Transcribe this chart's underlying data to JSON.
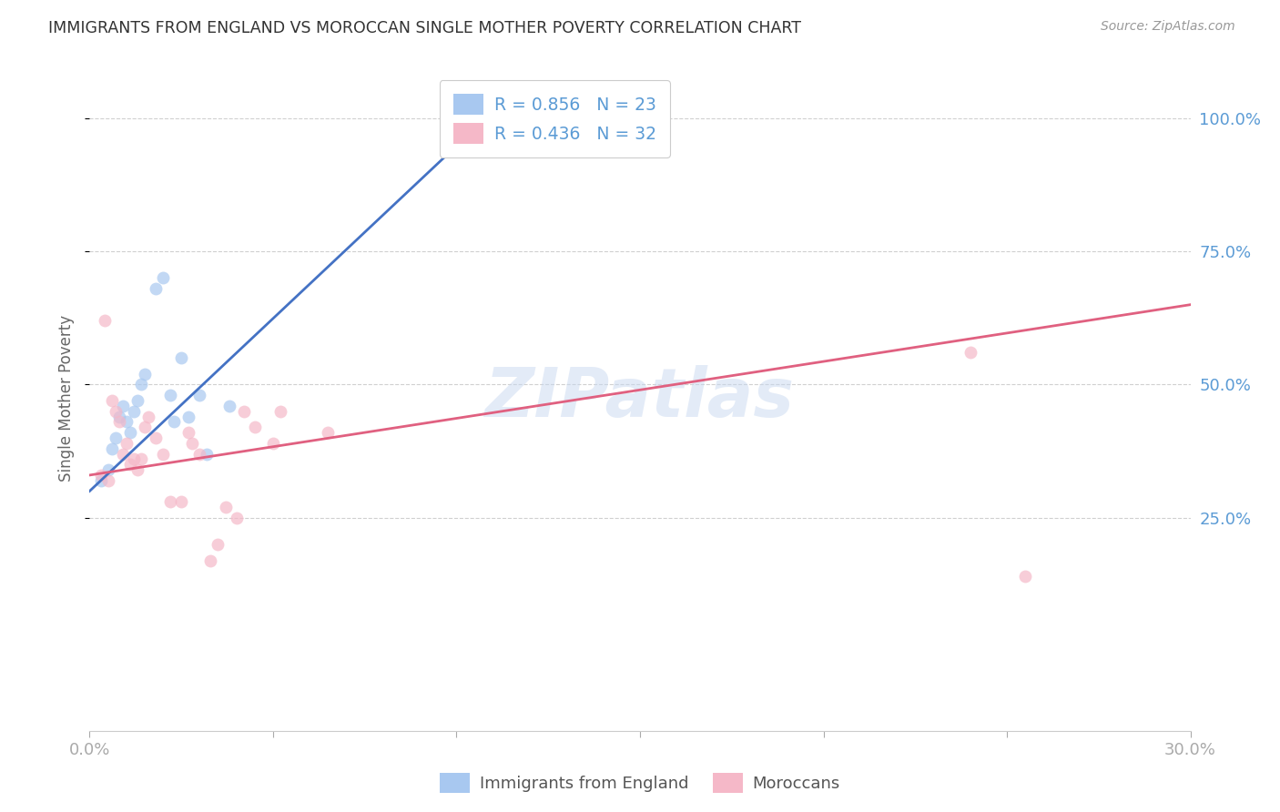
{
  "title": "IMMIGRANTS FROM ENGLAND VS MOROCCAN SINGLE MOTHER POVERTY CORRELATION CHART",
  "source": "Source: ZipAtlas.com",
  "ylabel": "Single Mother Poverty",
  "ylabel_right_labels": [
    "100.0%",
    "75.0%",
    "50.0%",
    "25.0%"
  ],
  "ylabel_right_positions": [
    100.0,
    75.0,
    50.0,
    25.0
  ],
  "legend_entries": [
    {
      "label": "R = 0.856   N = 23",
      "color": "#a8c8f0"
    },
    {
      "label": "R = 0.436   N = 32",
      "color": "#f5b8c8"
    }
  ],
  "legend_label_blue": "Immigrants from England",
  "legend_label_pink": "Moroccans",
  "watermark": "ZIPatlas",
  "xlim": [
    0.0,
    0.3
  ],
  "ylim": [
    -15.0,
    110.0
  ],
  "blue_points_x": [
    0.003,
    0.005,
    0.006,
    0.007,
    0.008,
    0.009,
    0.01,
    0.011,
    0.012,
    0.013,
    0.014,
    0.015,
    0.018,
    0.02,
    0.022,
    0.023,
    0.025,
    0.027,
    0.03,
    0.032,
    0.038,
    0.105,
    0.108
  ],
  "blue_points_y": [
    32.0,
    34.0,
    38.0,
    40.0,
    44.0,
    46.0,
    43.0,
    41.0,
    45.0,
    47.0,
    50.0,
    52.0,
    68.0,
    70.0,
    48.0,
    43.0,
    55.0,
    44.0,
    48.0,
    37.0,
    46.0,
    96.0,
    97.0
  ],
  "pink_points_x": [
    0.003,
    0.004,
    0.005,
    0.006,
    0.007,
    0.008,
    0.009,
    0.01,
    0.011,
    0.012,
    0.013,
    0.014,
    0.015,
    0.016,
    0.018,
    0.02,
    0.022,
    0.025,
    0.027,
    0.028,
    0.03,
    0.033,
    0.035,
    0.037,
    0.04,
    0.042,
    0.045,
    0.05,
    0.052,
    0.065,
    0.24,
    0.255
  ],
  "pink_points_y": [
    33.0,
    62.0,
    32.0,
    47.0,
    45.0,
    43.0,
    37.0,
    39.0,
    35.0,
    36.0,
    34.0,
    36.0,
    42.0,
    44.0,
    40.0,
    37.0,
    28.0,
    28.0,
    41.0,
    39.0,
    37.0,
    17.0,
    20.0,
    27.0,
    25.0,
    45.0,
    42.0,
    39.0,
    45.0,
    41.0,
    56.0,
    14.0
  ],
  "blue_line_x": [
    0.0,
    0.108
  ],
  "blue_line_y": [
    30.0,
    100.0
  ],
  "pink_line_x": [
    0.0,
    0.3
  ],
  "pink_line_y": [
    33.0,
    65.0
  ],
  "background_color": "#ffffff",
  "grid_color": "#d0d0d0",
  "blue_dot_color": "#a8c8f0",
  "pink_dot_color": "#f5b8c8",
  "blue_line_color": "#4472c4",
  "pink_line_color": "#e06080",
  "axis_label_color": "#5b9bd5",
  "title_color": "#333333",
  "dot_size": 100,
  "dot_alpha": 0.7
}
